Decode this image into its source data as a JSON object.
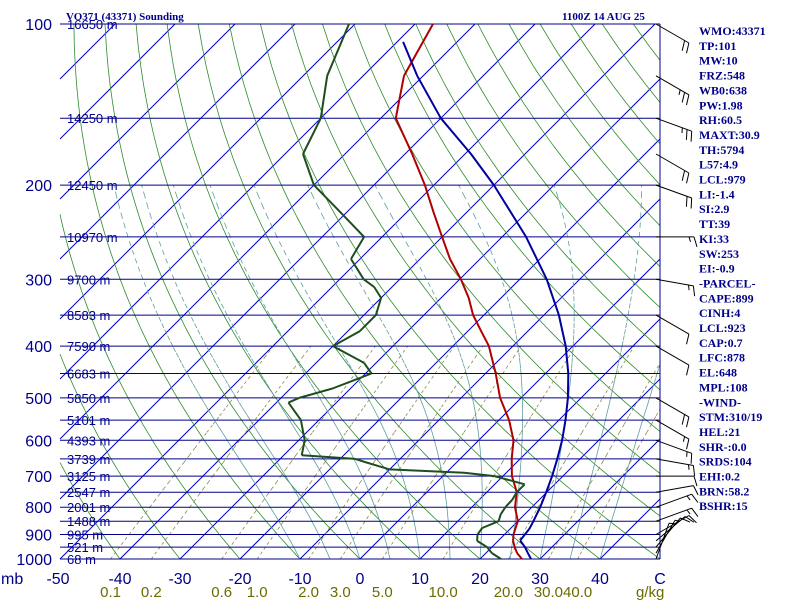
{
  "header": {
    "station": "VO371 (43371) Sounding",
    "time": "1100Z 14 AUG 25"
  },
  "chart_data": {
    "type": "line",
    "subtype": "skew-T log-P",
    "colors": {
      "background": "#ffffff",
      "isobar": "#00008b",
      "isotherm": "#0000cd",
      "dry_adiabat": "#2e8b2e",
      "moist_adiabat": "#5f9ea0",
      "mixing_ratio": "#8b8b4a",
      "temperature": "#b00000",
      "dewpoint": "#1e4e1e",
      "parcel": "#0000a0",
      "wind": "#000000"
    },
    "y_axis": {
      "label": "mb",
      "scale": "log",
      "range": [
        1000,
        100
      ],
      "ticks": [
        100,
        200,
        300,
        400,
        500,
        600,
        700,
        800,
        900,
        1000
      ]
    },
    "x_axis": {
      "unit": "C",
      "range": [
        -50,
        50
      ],
      "ticks": [
        "-50",
        "-40",
        "-30",
        "-20",
        "-10",
        "0",
        "10",
        "20",
        "30",
        "40"
      ],
      "end_label": "C"
    },
    "mixing_ratio_axis": {
      "unit": "g/kg",
      "ticks": [
        "0.1",
        "0.2",
        "0.6",
        "1.0",
        "2.0",
        "3.0",
        "5.0",
        "10.0",
        "20.0",
        "30.0",
        "40.0"
      ]
    },
    "heights": [
      {
        "p": 100,
        "label": "16650 m"
      },
      {
        "p": 150,
        "label": "14250 m"
      },
      {
        "p": 200,
        "label": "12450 m"
      },
      {
        "p": 250,
        "label": "10970 m"
      },
      {
        "p": 300,
        "label": "9700 m"
      },
      {
        "p": 350,
        "label": "8583 m"
      },
      {
        "p": 400,
        "label": "7590 m"
      },
      {
        "p": 450,
        "label": "6683 m"
      },
      {
        "p": 500,
        "label": "5850 m"
      },
      {
        "p": 550,
        "label": "5101 m"
      },
      {
        "p": 600,
        "label": "4393 m"
      },
      {
        "p": 650,
        "label": "3739 m"
      },
      {
        "p": 700,
        "label": "3125 m"
      },
      {
        "p": 750,
        "label": "2547 m"
      },
      {
        "p": 800,
        "label": "2001 m"
      },
      {
        "p": 850,
        "label": "1488 m"
      },
      {
        "p": 900,
        "label": "995 m"
      },
      {
        "p": 950,
        "label": "521 m"
      },
      {
        "p": 1000,
        "label": "68 m"
      }
    ],
    "series": [
      {
        "key": "temperature",
        "points": [
          [
            1000,
            27
          ],
          [
            975,
            25.2
          ],
          [
            950,
            23.8
          ],
          [
            925,
            22.5
          ],
          [
            900,
            21.5
          ],
          [
            850,
            20
          ],
          [
            800,
            17.2
          ],
          [
            750,
            15
          ],
          [
            700,
            11.5
          ],
          [
            650,
            8.6
          ],
          [
            600,
            5.8
          ],
          [
            550,
            1.7
          ],
          [
            500,
            -3.5
          ],
          [
            450,
            -8.3
          ],
          [
            400,
            -14
          ],
          [
            375,
            -17.8
          ],
          [
            350,
            -21.8
          ],
          [
            325,
            -25.4
          ],
          [
            300,
            -29.8
          ],
          [
            275,
            -35
          ],
          [
            250,
            -40
          ],
          [
            225,
            -45.5
          ],
          [
            200,
            -51.5
          ],
          [
            175,
            -58.8
          ],
          [
            150,
            -67.5
          ],
          [
            125,
            -73.2
          ],
          [
            100,
            -77
          ]
        ]
      },
      {
        "key": "dewpoint",
        "points": [
          [
            1000,
            23.5
          ],
          [
            975,
            21
          ],
          [
            950,
            19.2
          ],
          [
            925,
            16.5
          ],
          [
            900,
            15.5
          ],
          [
            875,
            15.2
          ],
          [
            850,
            16.8
          ],
          [
            825,
            16
          ],
          [
            800,
            15.6
          ],
          [
            775,
            15.5
          ],
          [
            750,
            15
          ],
          [
            725,
            15
          ],
          [
            700,
            8.6
          ],
          [
            690,
            3
          ],
          [
            680,
            -10
          ],
          [
            660,
            -15
          ],
          [
            650,
            -17.5
          ],
          [
            640,
            -27
          ],
          [
            600,
            -29
          ],
          [
            550,
            -33
          ],
          [
            510,
            -38
          ],
          [
            500,
            -37
          ],
          [
            480,
            -33
          ],
          [
            450,
            -29
          ],
          [
            430,
            -32
          ],
          [
            400,
            -40
          ],
          [
            375,
            -38
          ],
          [
            350,
            -38
          ],
          [
            325,
            -40
          ],
          [
            310,
            -43
          ],
          [
            300,
            -46
          ],
          [
            275,
            -51.5
          ],
          [
            250,
            -53
          ],
          [
            225,
            -61
          ],
          [
            200,
            -70
          ],
          [
            175,
            -77
          ],
          [
            150,
            -80
          ],
          [
            125,
            -86
          ],
          [
            100,
            -91
          ]
        ]
      },
      {
        "key": "parcel",
        "points": [
          [
            1000,
            28.5
          ],
          [
            975,
            27
          ],
          [
            950,
            25.5
          ],
          [
            923,
            23.6
          ],
          [
            900,
            23.4
          ],
          [
            878,
            23.2
          ],
          [
            850,
            22.6
          ],
          [
            800,
            21.4
          ],
          [
            750,
            19.9
          ],
          [
            700,
            18.2
          ],
          [
            650,
            16.2
          ],
          [
            600,
            13.9
          ],
          [
            550,
            11.1
          ],
          [
            500,
            7.8
          ],
          [
            450,
            3.8
          ],
          [
            400,
            -1.2
          ],
          [
            350,
            -7.5
          ],
          [
            300,
            -15.5
          ],
          [
            250,
            -26
          ],
          [
            200,
            -40
          ],
          [
            175,
            -49
          ],
          [
            150,
            -60
          ],
          [
            125,
            -71
          ],
          [
            108,
            -79
          ]
        ]
      }
    ],
    "winds": [
      {
        "p": 1000,
        "dir": 200,
        "spd": 5
      },
      {
        "p": 975,
        "dir": 210,
        "spd": 5
      },
      {
        "p": 950,
        "dir": 220,
        "spd": 10
      },
      {
        "p": 925,
        "dir": 230,
        "spd": 10
      },
      {
        "p": 900,
        "dir": 240,
        "spd": 10
      },
      {
        "p": 850,
        "dir": 250,
        "spd": 15
      },
      {
        "p": 800,
        "dir": 250,
        "spd": 15
      },
      {
        "p": 750,
        "dir": 260,
        "spd": 10
      },
      {
        "p": 700,
        "dir": 270,
        "spd": 10
      },
      {
        "p": 650,
        "dir": 280,
        "spd": 15
      },
      {
        "p": 600,
        "dir": 290,
        "spd": 15
      },
      {
        "p": 550,
        "dir": 300,
        "spd": 15
      },
      {
        "p": 500,
        "dir": 300,
        "spd": 20
      },
      {
        "p": 400,
        "dir": 300,
        "spd": 10
      },
      {
        "p": 350,
        "dir": 300,
        "spd": 10
      },
      {
        "p": 300,
        "dir": 280,
        "spd": 15
      },
      {
        "p": 250,
        "dir": 270,
        "spd": 15
      },
      {
        "p": 200,
        "dir": 290,
        "spd": 20
      },
      {
        "p": 175,
        "dir": 300,
        "spd": 20
      },
      {
        "p": 150,
        "dir": 290,
        "spd": 25
      },
      {
        "p": 125,
        "dir": 300,
        "spd": 25
      },
      {
        "p": 100,
        "dir": 300,
        "spd": 20
      }
    ]
  },
  "indices": [
    "WMO:43371",
    "TP:101",
    "MW:10",
    "FRZ:548",
    "WB0:638",
    "PW:1.98",
    "RH:60.5",
    "MAXT:30.9",
    "TH:5794",
    "L57:4.9",
    "LCL:979",
    "LI:-1.4",
    "SI:2.9",
    "TT:39",
    "KI:33",
    "SW:253",
    "EI:-0.9",
    "-PARCEL-",
    "CAPE:899",
    "CINH:4",
    "LCL:923",
    "CAP:0.7",
    "LFC:878",
    "EL:648",
    "MPL:108",
    "-WIND-",
    "STM:310/19",
    "HEL:21",
    "SHR-:0.0",
    "SRDS:104",
    "EHI:0.2",
    "BRN:58.2",
    "BSHR:15"
  ]
}
